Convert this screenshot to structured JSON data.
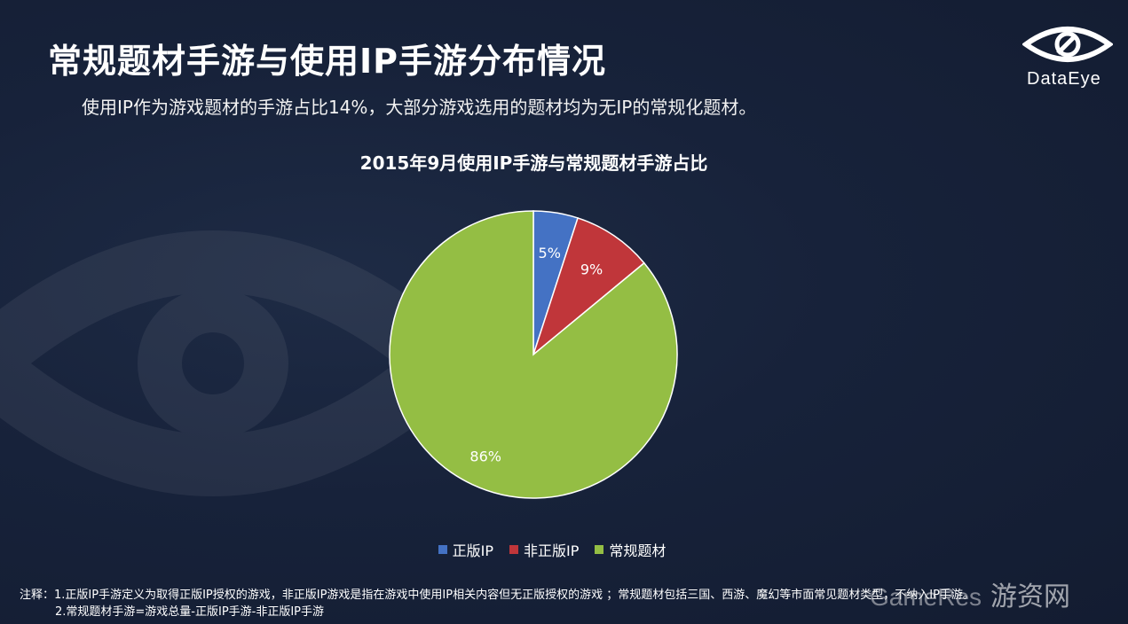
{
  "slide": {
    "title": "常规题材手游与使用IP手游分布情况",
    "subtitle": "使用IP作为游戏题材的手游占比14%，大部分游戏选用的题材均为无IP的常规化题材。"
  },
  "logo": {
    "text": "DataEye",
    "icon": "eye-icon"
  },
  "chart_data": {
    "type": "pie",
    "title": "2015年9月使用IP手游与常规题材手游占比",
    "categories": [
      "正版IP",
      "非正版IP",
      "常规题材"
    ],
    "values": [
      5,
      9,
      86
    ],
    "labels": [
      "5%",
      "9%",
      "86%"
    ],
    "colors": [
      "#4472c4",
      "#c0363a",
      "#94be44"
    ],
    "legend_position": "bottom"
  },
  "notes": {
    "line1": "注释：1.正版IP手游定义为取得正版IP授权的游戏，非正版IP游戏是指在游戏中使用IP相关内容但无正版授权的游戏 ；常规题材包括三国、西游、魔幻等市面常见题材类型，不纳入IP手游。",
    "line2": "2.常规题材手游=游戏总量-正版IP手游-非正版IP手游"
  },
  "watermark": {
    "text": "GameRes",
    "cn": "游资网"
  }
}
